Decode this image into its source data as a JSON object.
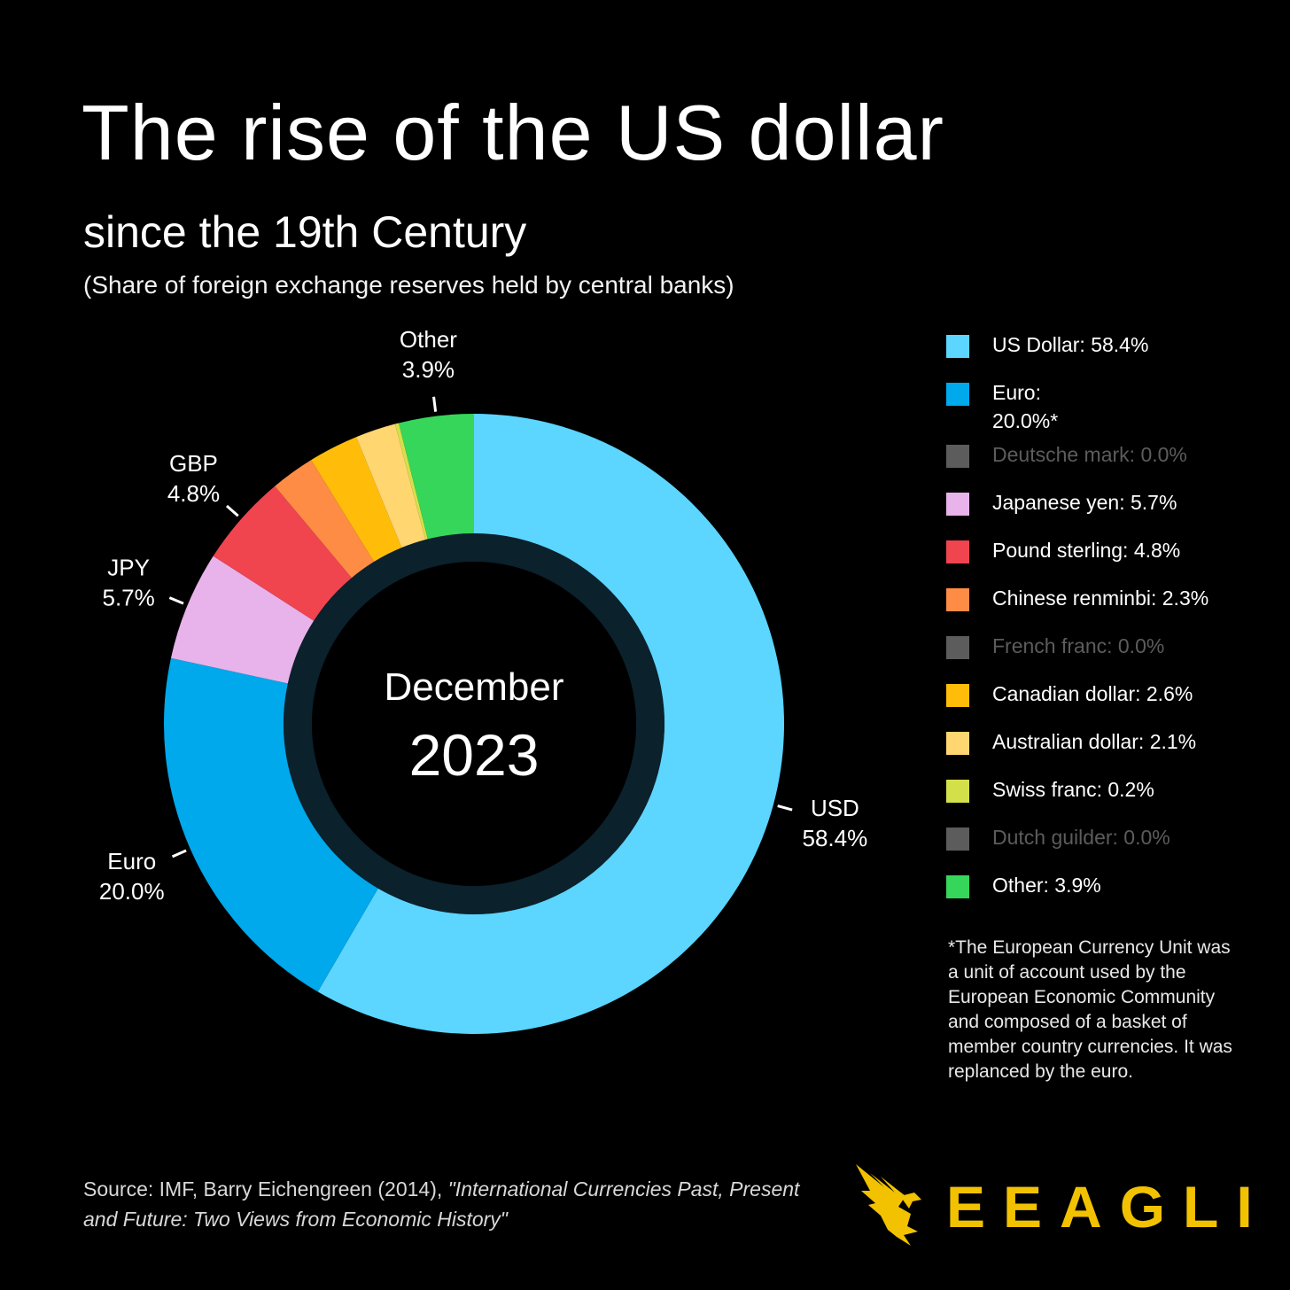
{
  "header": {
    "title": "The rise of the US dollar",
    "subtitle": "since the 19th Century",
    "note": "(Share of foreign exchange reserves held by central banks)"
  },
  "chart_data": {
    "type": "pie",
    "variant": "donut",
    "title": "The rise of the US dollar",
    "center_label_top": "December",
    "center_label_bottom": "2023",
    "slices": [
      {
        "name": "US Dollar",
        "value": 58.4,
        "color": "#5cd5ff",
        "label": "USD",
        "label_value": "58.4%"
      },
      {
        "name": "Euro",
        "value": 20.0,
        "color": "#00a8ec",
        "label": "Euro",
        "label_value": "20.0%"
      },
      {
        "name": "Japanese yen",
        "value": 5.7,
        "color": "#e8b2ea",
        "label": "JPY",
        "label_value": "5.7%"
      },
      {
        "name": "Pound sterling",
        "value": 4.8,
        "color": "#f0444f",
        "label": "GBP",
        "label_value": "4.8%"
      },
      {
        "name": "Chinese renminbi",
        "value": 2.3,
        "color": "#ff8c45",
        "label": "",
        "label_value": ""
      },
      {
        "name": "Canadian dollar",
        "value": 2.6,
        "color": "#ffbd0a",
        "label": "",
        "label_value": ""
      },
      {
        "name": "Australian dollar",
        "value": 2.1,
        "color": "#ffd670",
        "label": "",
        "label_value": ""
      },
      {
        "name": "Swiss franc",
        "value": 0.2,
        "color": "#d4e04a",
        "label": "",
        "label_value": ""
      },
      {
        "name": "Other",
        "value": 3.9,
        "color": "#36d65a",
        "label": "Other",
        "label_value": "3.9%"
      }
    ]
  },
  "legend": [
    {
      "label": "US Dollar: 58.4%",
      "color": "#5cd5ff",
      "dim": false
    },
    {
      "label": "Euro:",
      "label2": "20.0%*",
      "color": "#00a8ec",
      "dim": false
    },
    {
      "label": "Deutsche mark: 0.0%",
      "color": "#5c5c5c",
      "dim": true
    },
    {
      "label": "Japanese yen: 5.7%",
      "color": "#e8b2ea",
      "dim": false
    },
    {
      "label": "Pound sterling: 4.8%",
      "color": "#f0444f",
      "dim": false
    },
    {
      "label": "Chinese renminbi: 2.3%",
      "color": "#ff8c45",
      "dim": false
    },
    {
      "label": "French franc: 0.0%",
      "color": "#5c5c5c",
      "dim": true
    },
    {
      "label": "Canadian dollar: 2.6%",
      "color": "#ffbd0a",
      "dim": false
    },
    {
      "label": "Australian dollar: 2.1%",
      "color": "#ffd670",
      "dim": false
    },
    {
      "label": "Swiss franc: 0.2%",
      "color": "#d4e04a",
      "dim": false
    },
    {
      "label": "Dutch guilder: 0.0%",
      "color": "#5c5c5c",
      "dim": true
    },
    {
      "label": "Other: 3.9%",
      "color": "#36d65a",
      "dim": false
    }
  ],
  "footnote": "*The European Currency Unit was a unit of account used by the European Economic Community and composed of a basket of member country currencies. It was replanced by the euro.",
  "source": {
    "prefix": "Source: IMF, Barry Eichengreen (2014), ",
    "italic": "\"International Currencies Past, Present and Future: Two Views from Economic History\""
  },
  "brand": {
    "name": "EEAGLI",
    "color": "#f2c200"
  }
}
